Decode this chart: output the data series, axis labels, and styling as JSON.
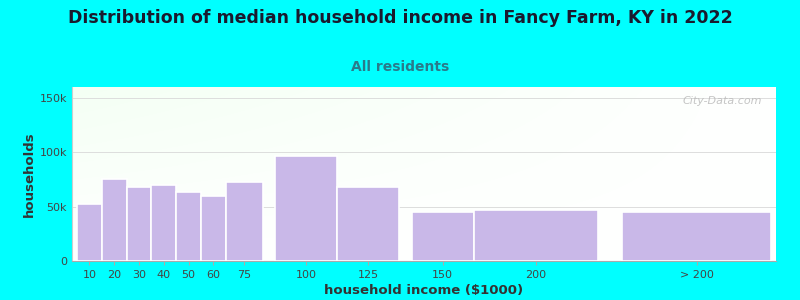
{
  "title": "Distribution of median household income in Fancy Farm, KY in 2022",
  "subtitle": "All residents",
  "xlabel": "household income ($1000)",
  "ylabel": "households",
  "bar_labels": [
    "10",
    "20",
    "30",
    "40",
    "50",
    "60",
    "75",
    "100",
    "125",
    "150",
    "200",
    "> 200"
  ],
  "bar_values": [
    52000,
    75000,
    68000,
    70000,
    63000,
    60000,
    73000,
    97000,
    68000,
    45000,
    47000,
    45000
  ],
  "bar_widths": [
    10,
    10,
    10,
    10,
    10,
    10,
    15,
    25,
    25,
    25,
    50,
    60
  ],
  "bar_left_edges": [
    5,
    15,
    25,
    35,
    45,
    55,
    65,
    85,
    110,
    140,
    165,
    225
  ],
  "bar_color": "#c9b8e8",
  "ylim": [
    0,
    160000
  ],
  "yticks": [
    0,
    50000,
    100000,
    150000
  ],
  "ytick_labels": [
    "0",
    "50k",
    "100k",
    "150k"
  ],
  "bg_color": "#00ffff",
  "title_color": "#1a1a2e",
  "subtitle_color": "#2a7a8a",
  "watermark": "City-Data.com",
  "title_fontsize": 12.5,
  "subtitle_fontsize": 10,
  "axis_label_fontsize": 9.5,
  "tick_fontsize": 8,
  "xlim_left": 3,
  "xlim_right": 287
}
